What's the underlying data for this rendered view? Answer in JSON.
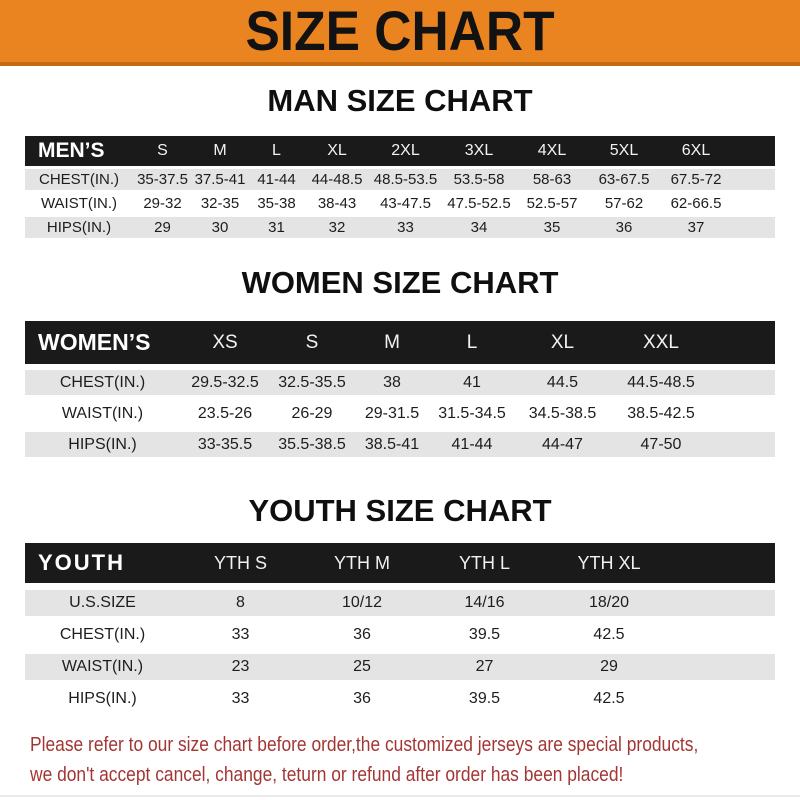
{
  "banner": {
    "title": "SIZE CHART"
  },
  "colors": {
    "banner_bg": "#EA8421",
    "banner_edge": "#C26B10",
    "header_bar_bg": "#1A1A1A",
    "row_gray": "#E4E4E4",
    "note_red": "#A33634"
  },
  "chart_data": [
    {
      "type": "table",
      "title": "MAN SIZE CHART",
      "corner_label": "MEN’S",
      "columns": [
        "S",
        "M",
        "L",
        "XL",
        "2XL",
        "3XL",
        "4XL",
        "5XL",
        "6XL"
      ],
      "rows": [
        {
          "label": "CHEST(IN.)",
          "values": [
            "35-37.5",
            "37.5-41",
            "41-44",
            "44-48.5",
            "48.5-53.5",
            "53.5-58",
            "58-63",
            "63-67.5",
            "67.5-72"
          ]
        },
        {
          "label": "WAIST(IN.)",
          "values": [
            "29-32",
            "32-35",
            "35-38",
            "38-43",
            "43-47.5",
            "47.5-52.5",
            "52.5-57",
            "57-62",
            "62-66.5"
          ]
        },
        {
          "label": "HIPS(IN.)",
          "values": [
            "29",
            "30",
            "31",
            "32",
            "33",
            "34",
            "35",
            "36",
            "37"
          ]
        }
      ]
    },
    {
      "type": "table",
      "title": "WOMEN SIZE CHART",
      "corner_label": "WOMEN’S",
      "columns": [
        "XS",
        "S",
        "M",
        "L",
        "XL",
        "XXL"
      ],
      "rows": [
        {
          "label": "CHEST(IN.)",
          "values": [
            "29.5-32.5",
            "32.5-35.5",
            "38",
            "41",
            "44.5",
            "44.5-48.5"
          ]
        },
        {
          "label": "WAIST(IN.)",
          "values": [
            "23.5-26",
            "26-29",
            "29-31.5",
            "31.5-34.5",
            "34.5-38.5",
            "38.5-42.5"
          ]
        },
        {
          "label": "HIPS(IN.)",
          "values": [
            "33-35.5",
            "35.5-38.5",
            "38.5-41",
            "41-44",
            "44-47",
            "47-50"
          ]
        }
      ]
    },
    {
      "type": "table",
      "title": "YOUTH SIZE CHART",
      "corner_label": "YOUTH",
      "columns": [
        "YTH S",
        "YTH M",
        "YTH L",
        "YTH XL"
      ],
      "rows": [
        {
          "label": "U.S.SIZE",
          "values": [
            "8",
            "10/12",
            "14/16",
            "18/20"
          ]
        },
        {
          "label": "CHEST(IN.)",
          "values": [
            "33",
            "36",
            "39.5",
            "42.5"
          ]
        },
        {
          "label": "WAIST(IN.)",
          "values": [
            "23",
            "25",
            "27",
            "29"
          ]
        },
        {
          "label": "HIPS(IN.)",
          "values": [
            "33",
            "36",
            "39.5",
            "42.5"
          ]
        }
      ]
    }
  ],
  "footer": {
    "lines": [
      "Please refer to our size chart before order,the customized jerseys are special products,",
      "we don't accept cancel, change, teturn or refund after order has been placed!"
    ]
  }
}
